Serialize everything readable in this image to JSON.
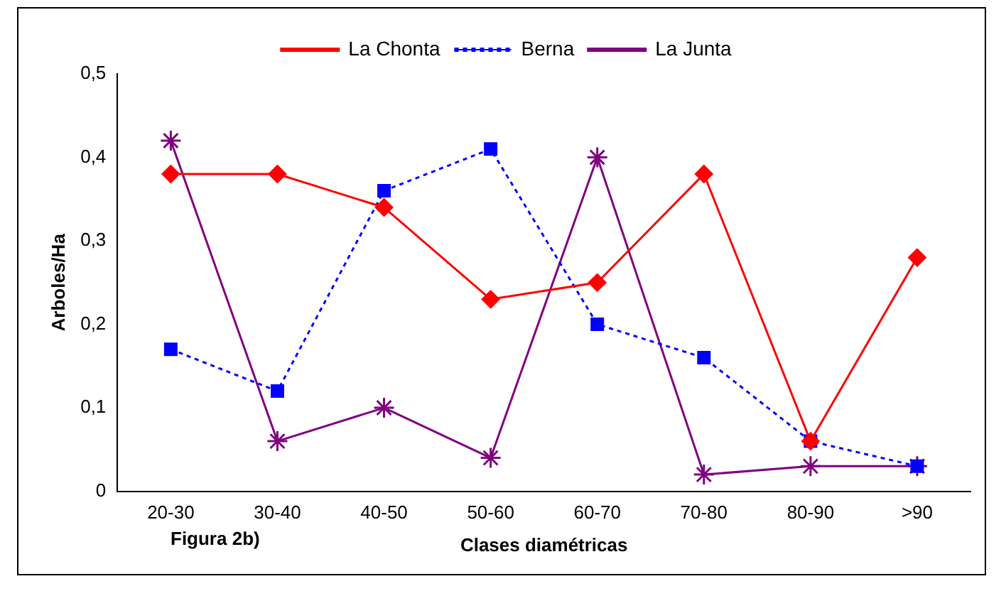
{
  "chart_data": {
    "type": "line",
    "xlabel": "Clases diamétricas",
    "ylabel": "Arboles/Ha",
    "annotations": [
      "Figura 2b)"
    ],
    "categories": [
      "20-30",
      "30-40",
      "40-50",
      "50-60",
      "60-70",
      "70-80",
      "80-90",
      ">90"
    ],
    "ylim": [
      0,
      0.5
    ],
    "yticks": [
      0,
      {
        "value": 0.1,
        "label": "0,1"
      },
      {
        "value": 0.2,
        "label": "0,2"
      },
      {
        "value": 0.3,
        "label": "0,3"
      },
      {
        "value": 0.4,
        "label": "0,4"
      },
      {
        "value": 0.5,
        "label": "0,5"
      }
    ],
    "grid": false,
    "legend": "top",
    "series": [
      {
        "name": "La Chonta",
        "color": "#ff0000",
        "marker": "diamond",
        "line_style": "solid",
        "values": [
          0.38,
          0.38,
          0.34,
          0.23,
          0.25,
          0.38,
          0.06,
          0.28
        ]
      },
      {
        "name": "Berna",
        "color": "#0000ff",
        "marker": "square",
        "line_style": "dotted",
        "values": [
          0.17,
          0.12,
          0.36,
          0.41,
          0.2,
          0.16,
          0.06,
          0.03
        ]
      },
      {
        "name": "La Junta",
        "color": "#800080",
        "marker": "cross",
        "line_style": "solid",
        "values": [
          0.42,
          0.06,
          0.1,
          0.04,
          0.4,
          0.02,
          0.03,
          0.03
        ]
      }
    ]
  }
}
